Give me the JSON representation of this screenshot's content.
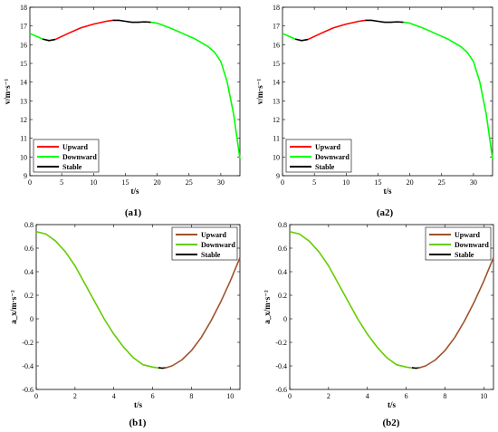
{
  "colors": {
    "upward": "#ff0000",
    "downward": "#00ff00",
    "stable": "#000000",
    "upward_b": "#a0522d",
    "downward_b": "#66cc00"
  },
  "chart_data": [
    {
      "id": "a1",
      "caption": "(a1)",
      "type": "line",
      "xlabel": "t/s",
      "ylabel": "v/m·s⁻¹",
      "xlim": [
        0,
        33
      ],
      "ylim": [
        9,
        18
      ],
      "xticks": [
        0,
        5,
        10,
        15,
        20,
        25,
        30
      ],
      "yticks": [
        9,
        10,
        11,
        12,
        13,
        14,
        15,
        16,
        17,
        18
      ],
      "grid": false,
      "legend_position": "bottom-left",
      "legend": [
        {
          "label": "Upward",
          "color": "#ff0000"
        },
        {
          "label": "Downward",
          "color": "#00ff00"
        },
        {
          "label": "Stable",
          "color": "#000000"
        }
      ],
      "series": [
        {
          "name": "Downward",
          "color": "#00ff00",
          "x": [
            0,
            1,
            2
          ],
          "y": [
            16.6,
            16.45,
            16.3
          ]
        },
        {
          "name": "Stable",
          "color": "#000000",
          "x": [
            2,
            3,
            4
          ],
          "y": [
            16.3,
            16.22,
            16.28
          ]
        },
        {
          "name": "Upward",
          "color": "#ff0000",
          "x": [
            4,
            6,
            8,
            10,
            12,
            13
          ],
          "y": [
            16.28,
            16.6,
            16.9,
            17.1,
            17.25,
            17.3
          ]
        },
        {
          "name": "Stable",
          "color": "#000000",
          "x": [
            13,
            14,
            15,
            16,
            17,
            18,
            19
          ],
          "y": [
            17.3,
            17.3,
            17.25,
            17.2,
            17.2,
            17.22,
            17.2
          ]
        },
        {
          "name": "Downward",
          "color": "#00ff00",
          "x": [
            19,
            20,
            22,
            24,
            26,
            28,
            29,
            30,
            31,
            32,
            33
          ],
          "y": [
            17.2,
            17.15,
            16.9,
            16.6,
            16.3,
            15.9,
            15.6,
            15.1,
            14.0,
            12.3,
            9.9
          ]
        }
      ]
    },
    {
      "id": "a2",
      "caption": "(a2)",
      "type": "line",
      "xlabel": "t/s",
      "ylabel": "v/m·s⁻¹",
      "xlim": [
        0,
        33
      ],
      "ylim": [
        9,
        18
      ],
      "xticks": [
        0,
        5,
        10,
        15,
        20,
        25,
        30
      ],
      "yticks": [
        9,
        10,
        11,
        12,
        13,
        14,
        15,
        16,
        17,
        18
      ],
      "grid": false,
      "legend_position": "bottom-left",
      "legend": [
        {
          "label": "Upward",
          "color": "#ff0000"
        },
        {
          "label": "Downward",
          "color": "#00ff00"
        },
        {
          "label": "Stable",
          "color": "#000000"
        }
      ],
      "series": [
        {
          "name": "Downward",
          "color": "#00ff00",
          "x": [
            0,
            1,
            2
          ],
          "y": [
            16.6,
            16.45,
            16.3
          ]
        },
        {
          "name": "Stable",
          "color": "#000000",
          "x": [
            2,
            3,
            4
          ],
          "y": [
            16.3,
            16.22,
            16.28
          ]
        },
        {
          "name": "Upward",
          "color": "#ff0000",
          "x": [
            4,
            6,
            8,
            10,
            12,
            13
          ],
          "y": [
            16.28,
            16.6,
            16.9,
            17.1,
            17.25,
            17.3
          ]
        },
        {
          "name": "Stable",
          "color": "#000000",
          "x": [
            13,
            14,
            15,
            16,
            17,
            18,
            19
          ],
          "y": [
            17.3,
            17.3,
            17.25,
            17.2,
            17.2,
            17.22,
            17.2
          ]
        },
        {
          "name": "Downward",
          "color": "#00ff00",
          "x": [
            19,
            20,
            22,
            24,
            26,
            28,
            29,
            30,
            31,
            32,
            33
          ],
          "y": [
            17.2,
            17.15,
            16.9,
            16.6,
            16.3,
            15.9,
            15.6,
            15.1,
            14.0,
            12.3,
            9.9
          ]
        }
      ]
    },
    {
      "id": "b1",
      "caption": "(b1)",
      "type": "line",
      "xlabel": "t/s",
      "ylabel": "a_x/m·s⁻²",
      "xlim": [
        0,
        10.5
      ],
      "ylim": [
        -0.6,
        0.8
      ],
      "xticks": [
        0,
        2,
        4,
        6,
        8,
        10
      ],
      "yticks": [
        -0.6,
        -0.4,
        -0.2,
        0,
        0.2,
        0.4,
        0.6,
        0.8
      ],
      "grid": false,
      "legend_position": "top-right",
      "legend": [
        {
          "label": "Upward",
          "color": "#a0522d"
        },
        {
          "label": "Downward",
          "color": "#66cc00"
        },
        {
          "label": "Stable",
          "color": "#000000"
        }
      ],
      "series": [
        {
          "name": "Downward",
          "color": "#66cc00",
          "x": [
            0,
            0.5,
            1,
            1.5,
            2,
            2.5,
            3,
            3.5,
            4,
            4.5,
            5,
            5.5,
            6,
            6.4
          ],
          "y": [
            0.74,
            0.72,
            0.66,
            0.57,
            0.45,
            0.3,
            0.15,
            0.0,
            -0.13,
            -0.24,
            -0.33,
            -0.39,
            -0.41,
            -0.42
          ]
        },
        {
          "name": "Stable",
          "color": "#000000",
          "x": [
            6.3,
            6.5,
            6.7
          ],
          "y": [
            -0.415,
            -0.42,
            -0.415
          ]
        },
        {
          "name": "Upward",
          "color": "#a0522d",
          "x": [
            6.6,
            7,
            7.5,
            8,
            8.5,
            9,
            9.5,
            10,
            10.5
          ],
          "y": [
            -0.42,
            -0.4,
            -0.35,
            -0.27,
            -0.16,
            -0.02,
            0.14,
            0.32,
            0.52
          ]
        }
      ]
    },
    {
      "id": "b2",
      "caption": "(b2)",
      "type": "line",
      "xlabel": "t/s",
      "ylabel": "a_x/m·s⁻²",
      "xlim": [
        0,
        10.5
      ],
      "ylim": [
        -0.6,
        0.8
      ],
      "xticks": [
        0,
        2,
        4,
        6,
        8,
        10
      ],
      "yticks": [
        -0.6,
        -0.4,
        -0.2,
        0,
        0.2,
        0.4,
        0.6,
        0.8
      ],
      "grid": false,
      "legend_position": "top-right",
      "legend": [
        {
          "label": "Upward",
          "color": "#a0522d"
        },
        {
          "label": "Downward",
          "color": "#66cc00"
        },
        {
          "label": "Stable",
          "color": "#000000"
        }
      ],
      "series": [
        {
          "name": "Downward",
          "color": "#66cc00",
          "x": [
            0,
            0.5,
            1,
            1.5,
            2,
            2.5,
            3,
            3.5,
            4,
            4.5,
            5,
            5.5,
            6,
            6.4
          ],
          "y": [
            0.74,
            0.72,
            0.66,
            0.57,
            0.45,
            0.3,
            0.15,
            0.0,
            -0.13,
            -0.24,
            -0.33,
            -0.39,
            -0.41,
            -0.42
          ]
        },
        {
          "name": "Stable",
          "color": "#000000",
          "x": [
            6.3,
            6.5,
            6.7
          ],
          "y": [
            -0.415,
            -0.42,
            -0.415
          ]
        },
        {
          "name": "Upward",
          "color": "#a0522d",
          "x": [
            6.6,
            7,
            7.5,
            8,
            8.5,
            9,
            9.5,
            10,
            10.5
          ],
          "y": [
            -0.42,
            -0.4,
            -0.35,
            -0.27,
            -0.16,
            -0.02,
            0.14,
            0.32,
            0.52
          ]
        }
      ]
    }
  ]
}
